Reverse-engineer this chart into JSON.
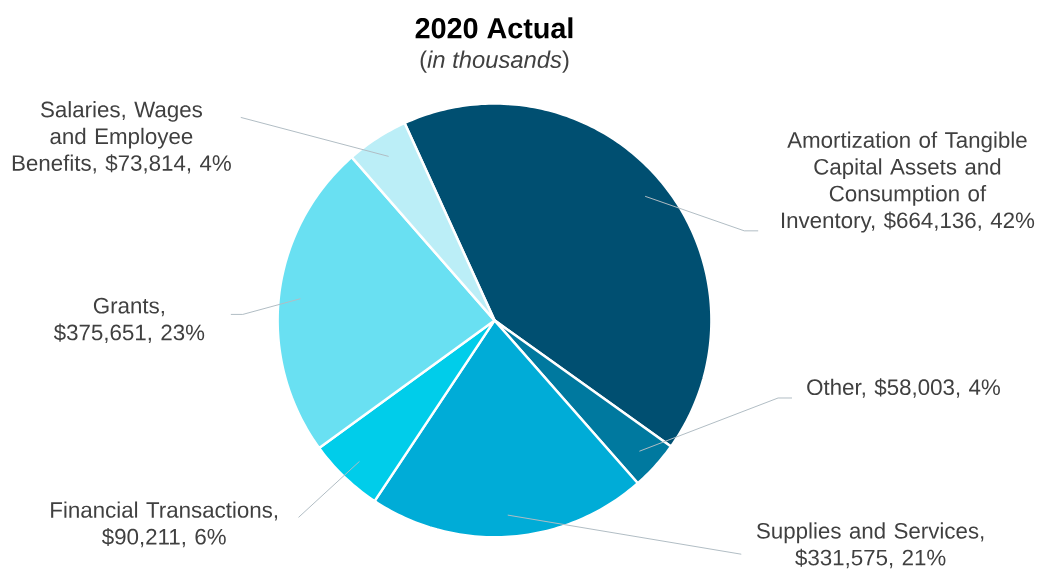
{
  "chart_data": {
    "type": "pie",
    "title": "2020 Actual",
    "subtitle": "(*in thousands*)",
    "categories": [
      "Amortization of Tangible Capital Assets and Consumption of Inventory, $664,136, 42%",
      "Other, $58,003, 4%",
      "Supplies and Services, $331,575, 21%",
      "Financial Transactions, $90,211, 6%",
      "Grants, $375,651, 23%",
      "Salaries, Wages and Employee Benefits, $73,814, 4%"
    ],
    "values": [
      664136,
      58003,
      331575,
      90211,
      375651,
      73814
    ],
    "colors": [
      "#004f71",
      "#00799f",
      "#00acd7",
      "#00cdea",
      "#69e0f2",
      "#bbeef7"
    ]
  }
}
